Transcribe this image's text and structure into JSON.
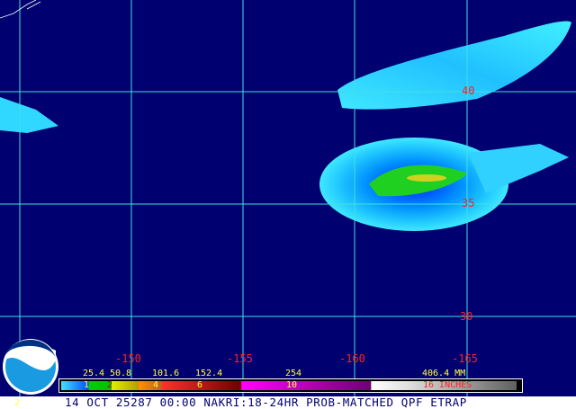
{
  "map": {
    "title": "14 OCT 25287 00:00 NAKRI:18-24HR PROB-MATCHED QPF ETRAP",
    "logo_text": "NOAA",
    "corner_label": "2",
    "latitude_labels": [
      "40",
      "35",
      "30"
    ],
    "longitude_labels": [
      "-150",
      "-155",
      "-160",
      "-165"
    ],
    "colors": {
      "background": "#000070",
      "grid": "#40e0e0",
      "labels": "#ff2020"
    }
  },
  "legend": {
    "mm_labels": [
      "25.4",
      "50.8",
      "101.6",
      "152.4",
      "254",
      "406.4 MM"
    ],
    "inch_labels": [
      "1",
      "2",
      "4",
      "6",
      "10",
      "16 INCHES"
    ]
  }
}
